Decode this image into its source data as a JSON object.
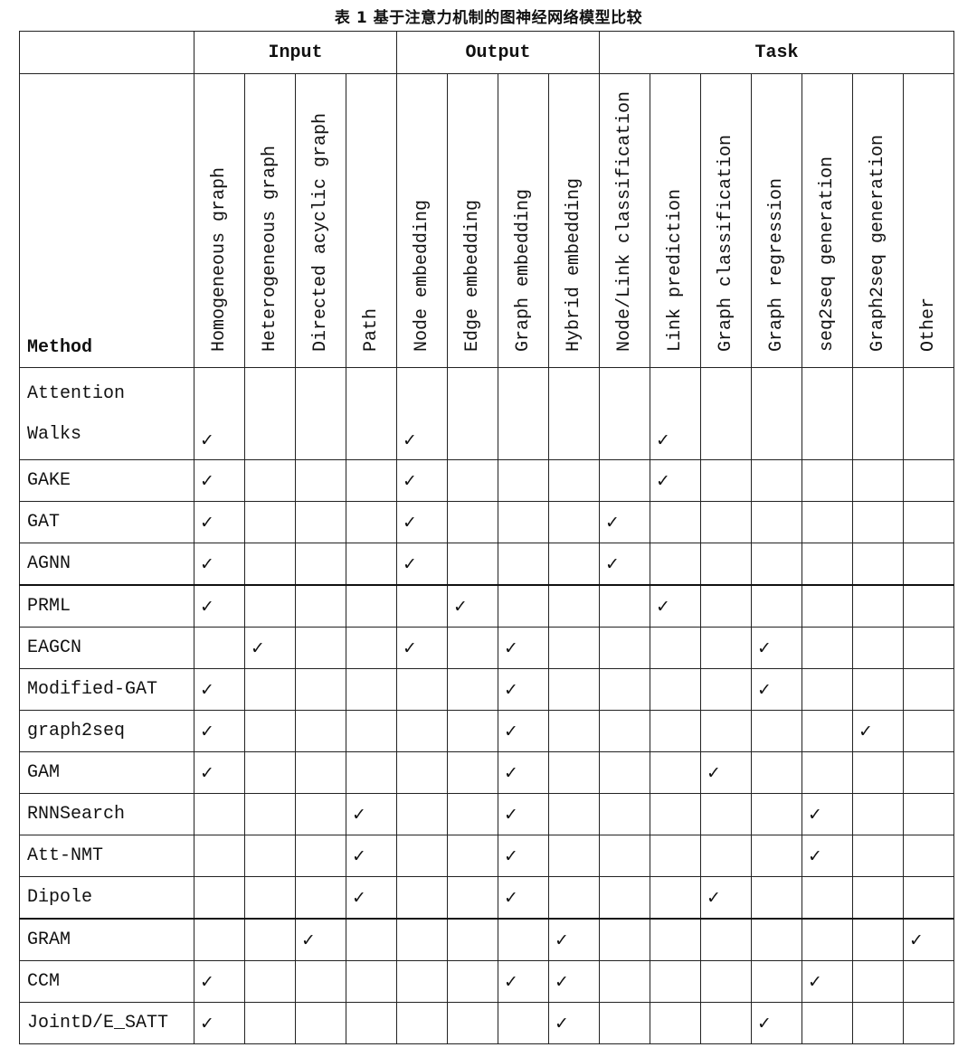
{
  "title": "表 1 基于注意力机制的图神经网络模型比较",
  "check_symbol": "✓",
  "groups": [
    {
      "label": "",
      "span": 1
    },
    {
      "label": "Input",
      "span": 4
    },
    {
      "label": "Output",
      "span": 4
    },
    {
      "label": "Task",
      "span": 7
    }
  ],
  "method_header": "Method",
  "columns": [
    "Homogeneous graph",
    "Heterogeneous graph",
    "Directed acyclic graph",
    "Path",
    "Node embedding",
    "Edge embedding",
    "Graph embedding",
    "Hybrid embedding",
    "Node/Link classification",
    "Link prediction",
    "Graph classification",
    "Graph regression",
    "seq2seq generation",
    "Graph2seq generation",
    "Other"
  ],
  "rows": [
    {
      "method": "Attention\nWalks",
      "checks": [
        0,
        4,
        9
      ]
    },
    {
      "method": "GAKE",
      "checks": [
        0,
        4,
        9
      ]
    },
    {
      "method": "GAT",
      "checks": [
        0,
        4,
        8
      ]
    },
    {
      "method": "AGNN",
      "checks": [
        0,
        4,
        8
      ]
    },
    {
      "method": "PRML",
      "checks": [
        0,
        5,
        9
      ]
    },
    {
      "method": "EAGCN",
      "checks": [
        1,
        4,
        6,
        11
      ]
    },
    {
      "method": "Modified-GAT",
      "checks": [
        0,
        6,
        11
      ]
    },
    {
      "method": "graph2seq",
      "checks": [
        0,
        6,
        13
      ]
    },
    {
      "method": "GAM",
      "checks": [
        0,
        6,
        10
      ]
    },
    {
      "method": "RNNSearch",
      "checks": [
        3,
        6,
        12
      ]
    },
    {
      "method": "Att-NMT",
      "checks": [
        3,
        6,
        12
      ]
    },
    {
      "method": "Dipole",
      "checks": [
        3,
        6,
        10
      ]
    },
    {
      "method": "GRAM",
      "checks": [
        2,
        7,
        14
      ]
    },
    {
      "method": "CCM",
      "checks": [
        0,
        6,
        7,
        12
      ]
    },
    {
      "method": "JointD/E_SATT",
      "checks": [
        0,
        7,
        11
      ]
    }
  ]
}
